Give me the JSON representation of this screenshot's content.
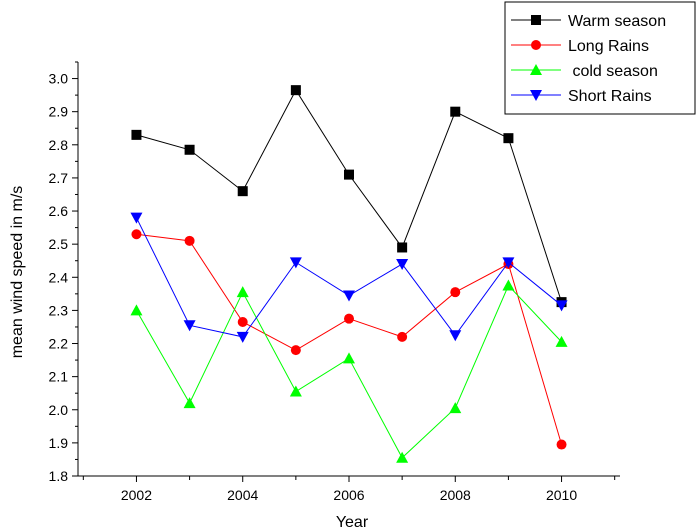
{
  "chart_data": {
    "type": "line",
    "title": "",
    "xlabel": "Year",
    "ylabel": "mean wind speed in m/s",
    "x": [
      2002,
      2003,
      2004,
      2005,
      2006,
      2007,
      2008,
      2009,
      2010
    ],
    "xlim": [
      2000.9,
      2011.1
    ],
    "ylim": [
      1.8,
      3.05
    ],
    "xticks": [
      "2002",
      "2004",
      "2006",
      "2008",
      "2010"
    ],
    "yticks": [
      "1.8",
      "1.9",
      "2.0",
      "2.1",
      "2.2",
      "2.3",
      "2.4",
      "2.5",
      "2.6",
      "2.7",
      "2.8",
      "2.9",
      "3.0"
    ],
    "grid": false,
    "legend_position": "top-right",
    "series": [
      {
        "name": "Warm season",
        "color": "#000000",
        "marker": "square",
        "values": [
          2.83,
          2.785,
          2.66,
          2.965,
          2.71,
          2.49,
          2.9,
          2.82,
          2.325
        ]
      },
      {
        "name": "Long Rains",
        "color": "#ff0000",
        "marker": "circle",
        "values": [
          2.53,
          2.51,
          2.265,
          2.18,
          2.275,
          2.22,
          2.355,
          2.44,
          1.895
        ]
      },
      {
        "name": " cold season",
        "color": "#00ff00",
        "marker": "triangle-up",
        "values": [
          2.3,
          2.02,
          2.355,
          2.055,
          2.155,
          1.855,
          2.005,
          2.375,
          2.205
        ]
      },
      {
        "name": "Short Rains",
        "color": "#0000ff",
        "marker": "triangle-down",
        "values": [
          2.58,
          2.255,
          2.22,
          2.445,
          2.345,
          2.44,
          2.225,
          2.445,
          2.315
        ]
      }
    ]
  }
}
